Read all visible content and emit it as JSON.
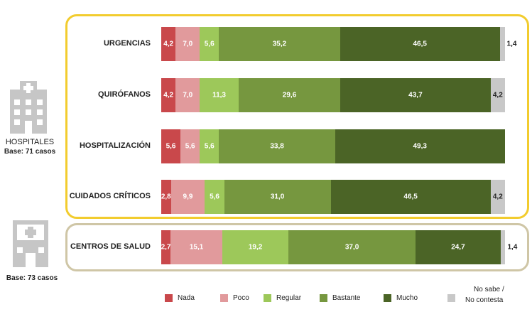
{
  "chart_data": {
    "type": "bar",
    "orientation": "horizontal",
    "stacked": true,
    "xlim": [
      0,
      100
    ],
    "categories": [
      "URGENCIAS",
      "QUIRÓFANOS",
      "HOSPITALIZACIÓN",
      "CUIDADOS CRÍTICOS",
      "CENTROS DE SALUD"
    ],
    "series": [
      {
        "name": "Nada",
        "color": "#c9484b",
        "values": [
          4.2,
          4.2,
          5.6,
          2.8,
          2.7
        ]
      },
      {
        "name": "Poco",
        "color": "#e19a9c",
        "values": [
          7.0,
          7.0,
          5.6,
          9.9,
          15.1
        ]
      },
      {
        "name": "Regular",
        "color": "#9dc85a",
        "values": [
          5.6,
          11.3,
          5.6,
          5.6,
          19.2
        ]
      },
      {
        "name": "Bastante",
        "color": "#76973f",
        "values": [
          35.2,
          29.6,
          33.8,
          31.0,
          37.0
        ]
      },
      {
        "name": "Mucho",
        "color": "#4b6426",
        "values": [
          46.5,
          43.7,
          49.3,
          46.5,
          24.7
        ]
      },
      {
        "name": "No sabe / No contesta",
        "color": "#c8c8c8",
        "values": [
          1.4,
          4.2,
          0,
          4.2,
          1.4
        ]
      }
    ],
    "value_labels": [
      [
        "4,2",
        "7,0",
        "5,6",
        "35,2",
        "46,5",
        "1,4"
      ],
      [
        "4,2",
        "7,0",
        "11,3",
        "29,6",
        "43,7",
        "4,2"
      ],
      [
        "5,6",
        "5,6",
        "5,6",
        "33,8",
        "49,3",
        ""
      ],
      [
        "2,8",
        "9,9",
        "5,6",
        "31,0",
        "46,5",
        "4,2"
      ],
      [
        "2,7",
        "15,1",
        "19,2",
        "37,0",
        "24,7",
        "1,4"
      ]
    ],
    "groups": [
      {
        "name": "HOSPITALES",
        "base": "Base: 71 casos"
      },
      {
        "name": "",
        "base": "Base: 73 casos"
      }
    ]
  },
  "legend": {
    "nada": "Nada",
    "poco": "Poco",
    "regular": "Regular",
    "bastante": "Bastante",
    "mucho": "Mucho",
    "nsnc_line1": "No sabe /",
    "nsnc_line2": "No contesta"
  },
  "side": {
    "hospitals_title": "HOSPITALES",
    "hospitals_base": "Base: 71 casos",
    "centros_base": "Base: 73 casos"
  },
  "colors": {
    "hospital_box": "#f2cc2e",
    "centros_box": "#cfc6a6",
    "icon_gray": "#c6c6c6"
  }
}
